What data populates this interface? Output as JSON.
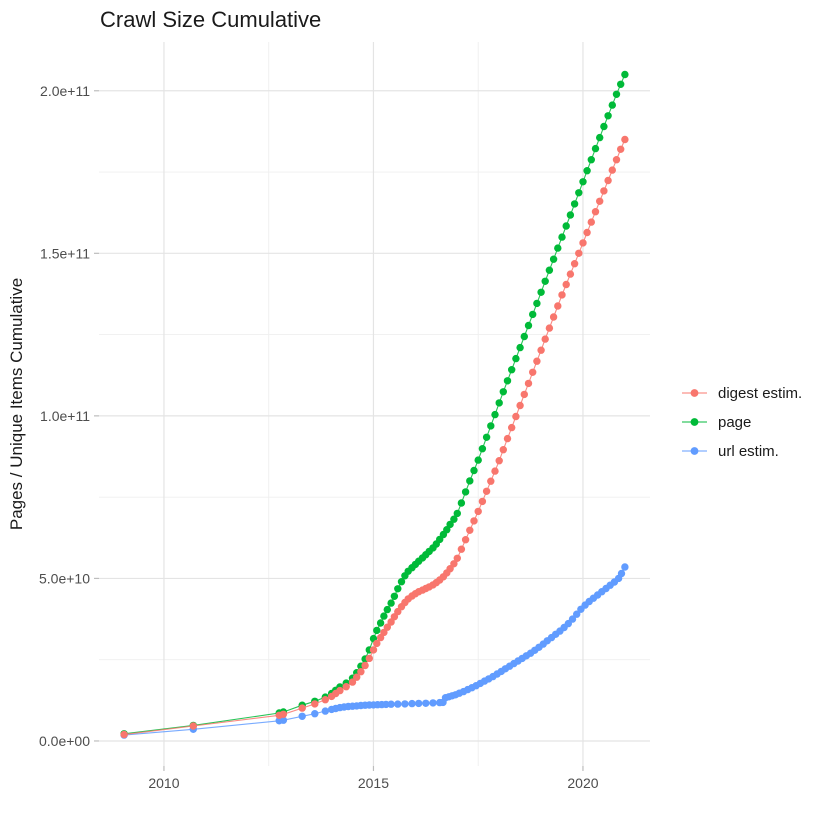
{
  "title": "Crawl Size Cumulative",
  "y_axis_title": "Pages / Unique Items Cumulative",
  "legend": {
    "items": [
      {
        "label": "digest estim.",
        "color": "#F8766D"
      },
      {
        "label": "page",
        "color": "#00BA38"
      },
      {
        "label": "url estim.",
        "color": "#619CFF"
      }
    ]
  },
  "chart_data": {
    "type": "line",
    "title": "Crawl Size Cumulative",
    "xlabel": "",
    "ylabel": "Pages / Unique Items Cumulative",
    "value_unit": "1e9",
    "xlim": [
      2008.45,
      2021.6
    ],
    "ylim_e9": [
      -7.7,
      215
    ],
    "grid": true,
    "legend_position": "right",
    "x_ticks": {
      "major": [
        2010,
        2015,
        2020
      ],
      "minor": [
        2012.5,
        2017.5
      ],
      "labels": [
        "2010",
        "2015",
        "2020"
      ]
    },
    "y_ticks": {
      "major_e9": [
        0,
        50,
        100,
        150,
        200
      ],
      "minor_e9": [
        25,
        75,
        125,
        175
      ],
      "labels": [
        "0.0e+00",
        "5.0e+10",
        "1.0e+11",
        "1.5e+11",
        "2.0e+11"
      ]
    },
    "series": [
      {
        "name": "url estim.",
        "color": "#619CFF",
        "points_e9": [
          [
            2009.05,
            1.8
          ],
          [
            2010.7,
            3.6
          ],
          [
            2012.75,
            6.2
          ],
          [
            2012.85,
            6.4
          ],
          [
            2013.3,
            7.6
          ],
          [
            2013.6,
            8.4
          ],
          [
            2013.85,
            9.2
          ],
          [
            2014.0,
            9.7
          ],
          [
            2014.1,
            10.0
          ],
          [
            2014.2,
            10.25
          ],
          [
            2014.3,
            10.45
          ],
          [
            2014.4,
            10.6
          ],
          [
            2014.5,
            10.7
          ],
          [
            2014.6,
            10.8
          ],
          [
            2014.7,
            10.9
          ],
          [
            2014.8,
            11.0
          ],
          [
            2014.9,
            11.05
          ],
          [
            2015.0,
            11.1
          ],
          [
            2015.1,
            11.15
          ],
          [
            2015.2,
            11.2
          ],
          [
            2015.3,
            11.25
          ],
          [
            2015.42,
            11.3
          ],
          [
            2015.58,
            11.35
          ],
          [
            2015.75,
            11.4
          ],
          [
            2015.92,
            11.5
          ],
          [
            2016.08,
            11.55
          ],
          [
            2016.25,
            11.6
          ],
          [
            2016.42,
            11.7
          ],
          [
            2016.58,
            11.8
          ],
          [
            2016.66,
            11.85
          ],
          [
            2016.72,
            13.3
          ],
          [
            2016.8,
            13.6
          ],
          [
            2016.88,
            13.9
          ],
          [
            2016.96,
            14.2
          ],
          [
            2017.05,
            14.7
          ],
          [
            2017.15,
            15.2
          ],
          [
            2017.25,
            15.8
          ],
          [
            2017.35,
            16.4
          ],
          [
            2017.45,
            17.0
          ],
          [
            2017.55,
            17.7
          ],
          [
            2017.65,
            18.4
          ],
          [
            2017.75,
            19.1
          ],
          [
            2017.85,
            19.8
          ],
          [
            2017.95,
            20.6
          ],
          [
            2018.05,
            21.4
          ],
          [
            2018.15,
            22.2
          ],
          [
            2018.25,
            23.0
          ],
          [
            2018.35,
            23.8
          ],
          [
            2018.45,
            24.6
          ],
          [
            2018.55,
            25.4
          ],
          [
            2018.65,
            26.2
          ],
          [
            2018.75,
            27.0
          ],
          [
            2018.85,
            27.9
          ],
          [
            2018.95,
            28.8
          ],
          [
            2019.05,
            29.8
          ],
          [
            2019.15,
            30.8
          ],
          [
            2019.25,
            31.8
          ],
          [
            2019.35,
            32.8
          ],
          [
            2019.45,
            33.8
          ],
          [
            2019.55,
            34.9
          ],
          [
            2019.65,
            36.1
          ],
          [
            2019.75,
            37.5
          ],
          [
            2019.85,
            39.0
          ],
          [
            2019.95,
            40.5
          ],
          [
            2020.05,
            41.8
          ],
          [
            2020.15,
            42.9
          ],
          [
            2020.25,
            43.9
          ],
          [
            2020.35,
            44.9
          ],
          [
            2020.45,
            45.9
          ],
          [
            2020.55,
            46.9
          ],
          [
            2020.65,
            47.9
          ],
          [
            2020.75,
            48.9
          ],
          [
            2020.85,
            50.0
          ],
          [
            2020.92,
            51.5
          ],
          [
            2021.0,
            53.5
          ]
        ]
      },
      {
        "name": "page",
        "color": "#00BA38",
        "points_e9": [
          [
            2009.05,
            2.2
          ],
          [
            2010.7,
            4.8
          ],
          [
            2012.75,
            8.6
          ],
          [
            2012.85,
            8.9
          ],
          [
            2013.3,
            11.0
          ],
          [
            2013.6,
            12.2
          ],
          [
            2013.85,
            13.5
          ],
          [
            2014.0,
            14.6
          ],
          [
            2014.1,
            15.6
          ],
          [
            2014.2,
            16.6
          ],
          [
            2014.35,
            17.8
          ],
          [
            2014.5,
            19.3
          ],
          [
            2014.6,
            21.0
          ],
          [
            2014.7,
            23.0
          ],
          [
            2014.8,
            25.2
          ],
          [
            2014.9,
            28.0
          ],
          [
            2015.0,
            31.5
          ],
          [
            2015.08,
            34.0
          ],
          [
            2015.17,
            36.3
          ],
          [
            2015.25,
            38.4
          ],
          [
            2015.33,
            40.4
          ],
          [
            2015.42,
            42.4
          ],
          [
            2015.5,
            44.5
          ],
          [
            2015.58,
            46.8
          ],
          [
            2015.67,
            49.0
          ],
          [
            2015.75,
            50.8
          ],
          [
            2015.83,
            52.2
          ],
          [
            2015.92,
            53.3
          ],
          [
            2016.0,
            54.3
          ],
          [
            2016.08,
            55.3
          ],
          [
            2016.17,
            56.3
          ],
          [
            2016.25,
            57.3
          ],
          [
            2016.33,
            58.3
          ],
          [
            2016.42,
            59.4
          ],
          [
            2016.5,
            60.6
          ],
          [
            2016.58,
            62.0
          ],
          [
            2016.67,
            63.5
          ],
          [
            2016.75,
            65.0
          ],
          [
            2016.83,
            66.6
          ],
          [
            2016.92,
            68.2
          ],
          [
            2017.0,
            70.0
          ],
          [
            2017.1,
            73.2
          ],
          [
            2017.2,
            76.6
          ],
          [
            2017.3,
            80.0
          ],
          [
            2017.4,
            83.2
          ],
          [
            2017.5,
            86.4
          ],
          [
            2017.6,
            89.9
          ],
          [
            2017.7,
            93.4
          ],
          [
            2017.8,
            96.9
          ],
          [
            2017.9,
            100.4
          ],
          [
            2018.0,
            104.0
          ],
          [
            2018.1,
            107.4
          ],
          [
            2018.2,
            110.8
          ],
          [
            2018.3,
            114.2
          ],
          [
            2018.4,
            117.6
          ],
          [
            2018.5,
            121.0
          ],
          [
            2018.6,
            124.4
          ],
          [
            2018.7,
            127.8
          ],
          [
            2018.8,
            131.2
          ],
          [
            2018.9,
            134.6
          ],
          [
            2019.0,
            138.0
          ],
          [
            2019.1,
            141.4
          ],
          [
            2019.2,
            144.8
          ],
          [
            2019.3,
            148.2
          ],
          [
            2019.4,
            151.6
          ],
          [
            2019.5,
            155.0
          ],
          [
            2019.6,
            158.4
          ],
          [
            2019.7,
            161.8
          ],
          [
            2019.8,
            165.2
          ],
          [
            2019.9,
            168.6
          ],
          [
            2020.0,
            172.0
          ],
          [
            2020.1,
            175.4
          ],
          [
            2020.2,
            178.8
          ],
          [
            2020.3,
            182.2
          ],
          [
            2020.4,
            185.6
          ],
          [
            2020.5,
            189.0
          ],
          [
            2020.6,
            192.3
          ],
          [
            2020.7,
            195.6
          ],
          [
            2020.8,
            198.9
          ],
          [
            2020.9,
            202.0
          ],
          [
            2021.0,
            205.0
          ]
        ]
      },
      {
        "name": "digest estim.",
        "color": "#F8766D",
        "points_e9": [
          [
            2009.05,
            2.0
          ],
          [
            2010.7,
            4.6
          ],
          [
            2012.75,
            7.9
          ],
          [
            2012.85,
            8.2
          ],
          [
            2013.3,
            10.1
          ],
          [
            2013.6,
            11.4
          ],
          [
            2013.85,
            12.7
          ],
          [
            2014.0,
            13.7
          ],
          [
            2014.1,
            14.6
          ],
          [
            2014.2,
            15.5
          ],
          [
            2014.35,
            16.7
          ],
          [
            2014.5,
            18.1
          ],
          [
            2014.6,
            19.6
          ],
          [
            2014.7,
            21.3
          ],
          [
            2014.8,
            23.2
          ],
          [
            2014.9,
            25.4
          ],
          [
            2015.0,
            28.0
          ],
          [
            2015.08,
            30.0
          ],
          [
            2015.17,
            31.8
          ],
          [
            2015.25,
            33.4
          ],
          [
            2015.33,
            35.0
          ],
          [
            2015.42,
            36.6
          ],
          [
            2015.5,
            38.2
          ],
          [
            2015.58,
            39.8
          ],
          [
            2015.67,
            41.3
          ],
          [
            2015.75,
            42.6
          ],
          [
            2015.83,
            43.7
          ],
          [
            2015.92,
            44.6
          ],
          [
            2016.0,
            45.3
          ],
          [
            2016.08,
            45.9
          ],
          [
            2016.17,
            46.4
          ],
          [
            2016.25,
            46.9
          ],
          [
            2016.33,
            47.4
          ],
          [
            2016.42,
            48.0
          ],
          [
            2016.5,
            48.7
          ],
          [
            2016.58,
            49.5
          ],
          [
            2016.67,
            50.5
          ],
          [
            2016.75,
            51.7
          ],
          [
            2016.83,
            53.0
          ],
          [
            2016.92,
            54.5
          ],
          [
            2017.0,
            56.2
          ],
          [
            2017.1,
            59.0
          ],
          [
            2017.2,
            61.9
          ],
          [
            2017.3,
            64.8
          ],
          [
            2017.4,
            67.7
          ],
          [
            2017.5,
            70.6
          ],
          [
            2017.6,
            73.7
          ],
          [
            2017.7,
            76.8
          ],
          [
            2017.8,
            79.9
          ],
          [
            2017.9,
            83.0
          ],
          [
            2018.0,
            86.2
          ],
          [
            2018.1,
            89.6
          ],
          [
            2018.2,
            93.0
          ],
          [
            2018.3,
            96.4
          ],
          [
            2018.4,
            99.8
          ],
          [
            2018.5,
            103.2
          ],
          [
            2018.6,
            106.6
          ],
          [
            2018.7,
            110.0
          ],
          [
            2018.8,
            113.4
          ],
          [
            2018.9,
            116.8
          ],
          [
            2019.0,
            120.2
          ],
          [
            2019.1,
            123.6
          ],
          [
            2019.2,
            127.0
          ],
          [
            2019.3,
            130.4
          ],
          [
            2019.4,
            133.8
          ],
          [
            2019.5,
            137.2
          ],
          [
            2019.6,
            140.4
          ],
          [
            2019.7,
            143.6
          ],
          [
            2019.8,
            146.8
          ],
          [
            2019.9,
            150.0
          ],
          [
            2020.0,
            153.2
          ],
          [
            2020.1,
            156.4
          ],
          [
            2020.2,
            159.6
          ],
          [
            2020.3,
            162.8
          ],
          [
            2020.4,
            166.0
          ],
          [
            2020.5,
            169.2
          ],
          [
            2020.6,
            172.4
          ],
          [
            2020.7,
            175.6
          ],
          [
            2020.8,
            178.8
          ],
          [
            2020.9,
            182.0
          ],
          [
            2021.0,
            185.0
          ]
        ]
      }
    ]
  },
  "layout_colors": {
    "grid_major": "#e4e4e4",
    "grid_minor": "#efefef",
    "tick": "#bdbdbd",
    "axis_text": "#4d4d4d",
    "text": "#1a1a1a"
  }
}
